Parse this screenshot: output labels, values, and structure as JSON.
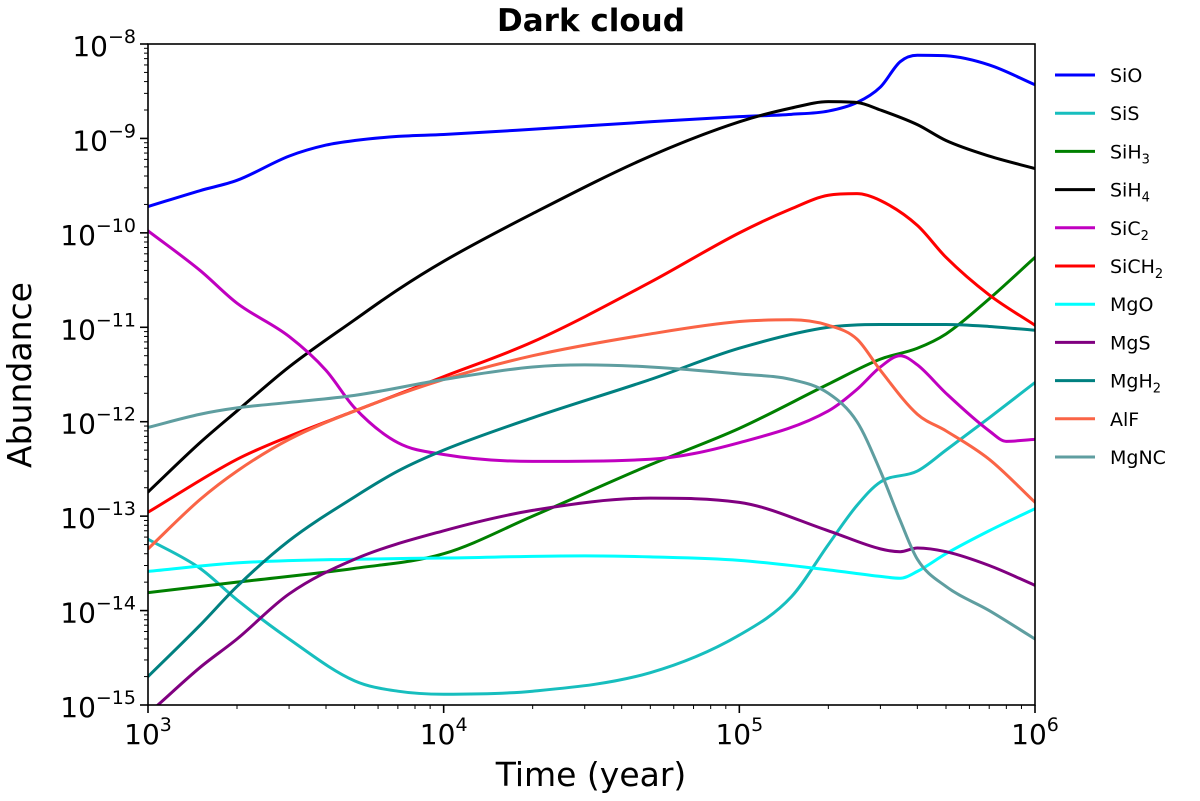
{
  "chart_data": {
    "type": "line",
    "title": "Dark cloud",
    "xlabel": "Time (year)",
    "ylabel": "Abundance",
    "xscale": "log",
    "yscale": "log",
    "xlim": [
      1000,
      1000000
    ],
    "ylim": [
      1e-15,
      1e-08
    ],
    "x_ticks": [
      {
        "value": 1000,
        "base": "10",
        "exp": "3"
      },
      {
        "value": 10000,
        "base": "10",
        "exp": "4"
      },
      {
        "value": 100000,
        "base": "10",
        "exp": "5"
      },
      {
        "value": 1000000,
        "base": "10",
        "exp": "6"
      }
    ],
    "y_ticks": [
      {
        "value": 1e-08,
        "base": "10",
        "exp": "−8"
      },
      {
        "value": 1e-09,
        "base": "10",
        "exp": "−9"
      },
      {
        "value": 1e-10,
        "base": "10",
        "exp": "−10"
      },
      {
        "value": 1e-11,
        "base": "10",
        "exp": "−11"
      },
      {
        "value": 1e-12,
        "base": "10",
        "exp": "−12"
      },
      {
        "value": 1e-13,
        "base": "10",
        "exp": "−13"
      },
      {
        "value": 1e-14,
        "base": "10",
        "exp": "−14"
      },
      {
        "value": 1e-15,
        "base": "10",
        "exp": "−15"
      }
    ],
    "grid": false,
    "legend_position": "outside-right",
    "series": [
      {
        "name": "SiO",
        "label_main": "SiO",
        "label_sub": "",
        "color": "#0000ff",
        "x": [
          1000,
          1500,
          2000,
          3000,
          4000,
          5000,
          7000,
          10000,
          20000,
          50000,
          100000,
          150000,
          200000,
          250000,
          300000,
          350000,
          400000,
          500000,
          700000,
          1000000
        ],
        "y": [
          1.9e-10,
          2.8e-10,
          3.6e-10,
          6.5e-10,
          8.5e-10,
          9.5e-10,
          1.05e-09,
          1.1e-09,
          1.25e-09,
          1.5e-09,
          1.7e-09,
          1.8e-09,
          1.95e-09,
          2.4e-09,
          3.5e-09,
          6.5e-09,
          7.6e-09,
          7.5e-09,
          6e-09,
          3.7e-09
        ]
      },
      {
        "name": "SiS",
        "label_main": "SiS",
        "label_sub": "",
        "color": "#17bebe",
        "x": [
          1000,
          1500,
          2000,
          3000,
          5000,
          7000,
          10000,
          20000,
          50000,
          100000,
          150000,
          200000,
          250000,
          300000,
          400000,
          500000,
          700000,
          1000000
        ],
        "y": [
          5.7e-14,
          2.8e-14,
          1.3e-14,
          5e-15,
          1.8e-15,
          1.4e-15,
          1.3e-15,
          1.4e-15,
          2.2e-15,
          5.5e-15,
          1.4e-14,
          5e-14,
          1.3e-13,
          2.3e-13,
          3e-13,
          5e-13,
          1.1e-12,
          2.6e-12
        ]
      },
      {
        "name": "SiH3",
        "label_main": "SiH",
        "label_sub": "3",
        "color": "#008000",
        "x": [
          1000,
          2000,
          5000,
          10000,
          20000,
          50000,
          100000,
          200000,
          300000,
          400000,
          500000,
          700000,
          1000000
        ],
        "y": [
          1.55e-14,
          2e-14,
          2.8e-14,
          4e-14,
          1e-13,
          3.5e-13,
          8.5e-13,
          2.5e-12,
          4.6e-12,
          6e-12,
          8.5e-12,
          2e-11,
          5.5e-11
        ]
      },
      {
        "name": "SiH4",
        "label_main": "SiH",
        "label_sub": "4",
        "color": "#000000",
        "x": [
          1000,
          1500,
          2000,
          3000,
          5000,
          7000,
          10000,
          20000,
          50000,
          100000,
          150000,
          200000,
          250000,
          300000,
          400000,
          500000,
          700000,
          1000000
        ],
        "y": [
          1.8e-13,
          6e-13,
          1.3e-12,
          3.8e-12,
          1.2e-11,
          2.5e-11,
          5e-11,
          1.6e-10,
          6.5e-10,
          1.5e-09,
          2.1e-09,
          2.45e-09,
          2.4e-09,
          2e-09,
          1.4e-09,
          9.5e-10,
          6.5e-10,
          4.8e-10
        ]
      },
      {
        "name": "SiC2",
        "label_main": "SiC",
        "label_sub": "2",
        "color": "#c000c0",
        "x": [
          1000,
          1500,
          2000,
          3000,
          4000,
          5000,
          7000,
          10000,
          20000,
          50000,
          100000,
          200000,
          250000,
          300000,
          350000,
          400000,
          500000,
          700000,
          800000,
          1000000
        ],
        "y": [
          1.05e-10,
          4e-11,
          1.8e-11,
          8e-12,
          3.5e-12,
          1.4e-12,
          6e-13,
          4.5e-13,
          3.8e-13,
          4e-13,
          6e-13,
          1.3e-12,
          2.2e-12,
          3.8e-12,
          5e-12,
          4e-12,
          2e-12,
          8e-13,
          6.2e-13,
          6.5e-13
        ]
      },
      {
        "name": "SiCH2",
        "label_main": "SiCH",
        "label_sub": "2",
        "color": "#ff0000",
        "x": [
          1000,
          2000,
          3000,
          5000,
          10000,
          20000,
          50000,
          100000,
          150000,
          200000,
          250000,
          300000,
          400000,
          500000,
          700000,
          1000000
        ],
        "y": [
          1.1e-13,
          4e-13,
          7e-13,
          1.3e-12,
          3e-12,
          7e-12,
          3e-11,
          1e-10,
          1.8e-10,
          2.5e-10,
          2.6e-10,
          2.2e-10,
          1.2e-10,
          5.5e-11,
          2.2e-11,
          1.05e-11
        ]
      },
      {
        "name": "MgO",
        "label_main": "MgO",
        "label_sub": "",
        "color": "#00ffff",
        "x": [
          1000,
          2000,
          5000,
          10000,
          30000,
          50000,
          100000,
          200000,
          300000,
          350000,
          400000,
          500000,
          700000,
          1000000
        ],
        "y": [
          2.6e-14,
          3.2e-14,
          3.5e-14,
          3.6e-14,
          3.8e-14,
          3.7e-14,
          3.4e-14,
          2.7e-14,
          2.3e-14,
          2.2e-14,
          2.6e-14,
          4e-14,
          7e-14,
          1.2e-13
        ]
      },
      {
        "name": "MgS",
        "label_main": "MgS",
        "label_sub": "",
        "color": "#800080",
        "x": [
          1080,
          1500,
          2000,
          3000,
          5000,
          10000,
          20000,
          50000,
          100000,
          200000,
          300000,
          350000,
          400000,
          500000,
          700000,
          1000000
        ],
        "y": [
          1e-15,
          2.5e-15,
          5e-15,
          1.5e-14,
          3.5e-14,
          7e-14,
          1.15e-13,
          1.55e-13,
          1.4e-13,
          7e-14,
          4.5e-14,
          4.2e-14,
          4.6e-14,
          4.2e-14,
          3e-14,
          1.85e-14
        ]
      },
      {
        "name": "MgH2",
        "label_main": "MgH",
        "label_sub": "2",
        "color": "#008080",
        "x": [
          1000,
          1500,
          2000,
          3000,
          5000,
          7000,
          10000,
          20000,
          50000,
          100000,
          200000,
          300000,
          500000,
          700000,
          1000000
        ],
        "y": [
          2e-15,
          7e-15,
          1.8e-14,
          5.5e-14,
          1.6e-13,
          3e-13,
          5e-13,
          1.1e-12,
          2.8e-12,
          6e-12,
          1e-11,
          1.07e-11,
          1.07e-11,
          1.02e-11,
          9.3e-12
        ]
      },
      {
        "name": "AlF",
        "label_main": "AlF",
        "label_sub": "",
        "color": "#fa6446",
        "x": [
          1000,
          1500,
          2000,
          3000,
          5000,
          10000,
          20000,
          50000,
          100000,
          150000,
          200000,
          250000,
          300000,
          400000,
          500000,
          700000,
          1000000
        ],
        "y": [
          4.5e-14,
          1.5e-13,
          3e-13,
          6.5e-13,
          1.3e-12,
          2.8e-12,
          5e-12,
          8.5e-12,
          1.15e-11,
          1.2e-11,
          1.05e-11,
          7.5e-12,
          3.5e-12,
          1.2e-12,
          8e-13,
          4e-13,
          1.4e-13
        ]
      },
      {
        "name": "MgNC",
        "label_main": "MgNC",
        "label_sub": "",
        "color": "#5f9ea0",
        "x": [
          1000,
          1500,
          2000,
          3000,
          5000,
          10000,
          20000,
          30000,
          50000,
          100000,
          150000,
          200000,
          250000,
          300000,
          350000,
          400000,
          500000,
          700000,
          1000000
        ],
        "y": [
          8.7e-13,
          1.2e-12,
          1.4e-12,
          1.6e-12,
          1.9e-12,
          2.8e-12,
          3.8e-12,
          4e-12,
          3.8e-12,
          3.2e-12,
          2.8e-12,
          2e-12,
          1e-12,
          3e-13,
          9e-14,
          3.5e-14,
          1.8e-14,
          1e-14,
          5e-15
        ]
      }
    ]
  }
}
